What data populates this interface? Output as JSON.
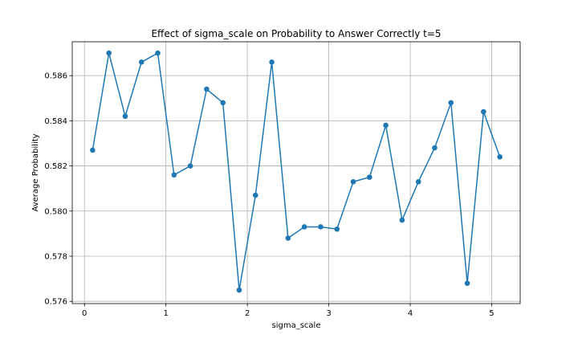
{
  "chart_data": {
    "type": "line",
    "title": "Effect of sigma_scale on Probability to Answer Correctly t=5",
    "xlabel": "sigma_scale",
    "ylabel": "Average Probability",
    "xlim": [
      -0.15,
      5.35
    ],
    "ylim": [
      0.5759,
      0.5875
    ],
    "x_ticks": [
      0,
      1,
      2,
      3,
      4,
      5
    ],
    "x_tick_labels": [
      "0",
      "1",
      "2",
      "3",
      "4",
      "5"
    ],
    "y_ticks": [
      0.576,
      0.578,
      0.58,
      0.582,
      0.584,
      0.586
    ],
    "y_tick_labels": [
      "0.576",
      "0.578",
      "0.580",
      "0.582",
      "0.584",
      "0.586"
    ],
    "grid": true,
    "series": [
      {
        "color": "#1f77b4",
        "marker": "circle",
        "x": [
          0.1,
          0.3,
          0.5,
          0.7,
          0.9,
          1.1,
          1.3,
          1.5,
          1.7,
          1.9,
          2.1,
          2.3,
          2.5,
          2.7,
          2.9,
          3.1,
          3.3,
          3.5,
          3.7,
          3.9,
          4.1,
          4.3,
          4.5,
          4.7,
          4.9,
          5.1
        ],
        "y": [
          0.5827,
          0.587,
          0.5842,
          0.5866,
          0.587,
          0.5816,
          0.582,
          0.5854,
          0.5848,
          0.5765,
          0.5807,
          0.5866,
          0.5788,
          0.5793,
          0.5793,
          0.5792,
          0.5813,
          0.5815,
          0.5838,
          0.5796,
          0.5813,
          0.5828,
          0.5848,
          0.5768,
          0.5844,
          0.5824
        ]
      }
    ]
  }
}
